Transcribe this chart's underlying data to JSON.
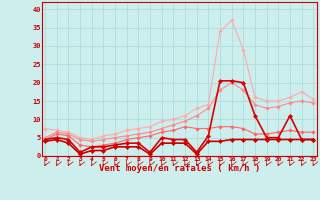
{
  "xlabel": "Vent moyen/en rafales ( km/h )",
  "background_color": "#cceeed",
  "grid_color": "#aadddd",
  "x": [
    0,
    1,
    2,
    3,
    4,
    5,
    6,
    7,
    8,
    9,
    10,
    11,
    12,
    13,
    14,
    15,
    16,
    17,
    18,
    19,
    20,
    21,
    22,
    23
  ],
  "ylim": [
    0,
    42
  ],
  "xlim": [
    -0.3,
    23.3
  ],
  "series": [
    {
      "color": "#ffaaaa",
      "lw": 0.8,
      "marker": "D",
      "ms": 1.8,
      "y": [
        7.5,
        7.0,
        6.5,
        5.0,
        4.5,
        5.5,
        6.0,
        7.0,
        7.5,
        8.0,
        9.5,
        10.0,
        11.0,
        13.0,
        14.0,
        34.0,
        37.0,
        29.0,
        16.0,
        15.0,
        15.0,
        16.0,
        17.5,
        15.5
      ]
    },
    {
      "color": "#ff8888",
      "lw": 0.8,
      "marker": "D",
      "ms": 1.8,
      "y": [
        5.0,
        6.5,
        6.0,
        4.5,
        4.0,
        4.5,
        5.0,
        5.5,
        6.0,
        6.5,
        7.5,
        8.5,
        9.5,
        11.0,
        13.0,
        18.0,
        20.0,
        18.0,
        14.0,
        13.0,
        13.5,
        14.5,
        15.0,
        14.5
      ]
    },
    {
      "color": "#ff6666",
      "lw": 0.8,
      "marker": "D",
      "ms": 1.8,
      "y": [
        4.5,
        6.0,
        5.5,
        3.0,
        2.5,
        3.0,
        3.5,
        4.5,
        5.0,
        5.5,
        6.5,
        7.0,
        8.0,
        7.5,
        7.5,
        8.0,
        8.0,
        7.5,
        6.0,
        6.0,
        6.5,
        7.0,
        6.5,
        6.5
      ]
    },
    {
      "color": "#dd0000",
      "lw": 1.2,
      "marker": "D",
      "ms": 2.2,
      "y": [
        4.5,
        5.0,
        4.5,
        1.0,
        2.5,
        2.5,
        3.0,
        3.5,
        3.5,
        1.0,
        5.0,
        4.5,
        4.5,
        1.0,
        5.5,
        20.5,
        20.5,
        20.0,
        11.0,
        5.0,
        5.0,
        11.0,
        4.5,
        4.5
      ]
    },
    {
      "color": "#cc0000",
      "lw": 1.2,
      "marker": "D",
      "ms": 2.2,
      "y": [
        4.0,
        4.5,
        3.5,
        0.5,
        1.5,
        1.5,
        2.5,
        2.5,
        2.5,
        0.5,
        3.5,
        3.5,
        3.5,
        0.5,
        4.0,
        4.0,
        4.5,
        4.5,
        4.5,
        4.5,
        4.5,
        4.5,
        4.5,
        4.5
      ]
    }
  ],
  "yticks": [
    0,
    5,
    10,
    15,
    20,
    25,
    30,
    35,
    40
  ],
  "xticks": [
    0,
    1,
    2,
    3,
    4,
    5,
    6,
    7,
    8,
    9,
    10,
    11,
    12,
    13,
    14,
    15,
    16,
    17,
    18,
    19,
    20,
    21,
    22,
    23
  ]
}
